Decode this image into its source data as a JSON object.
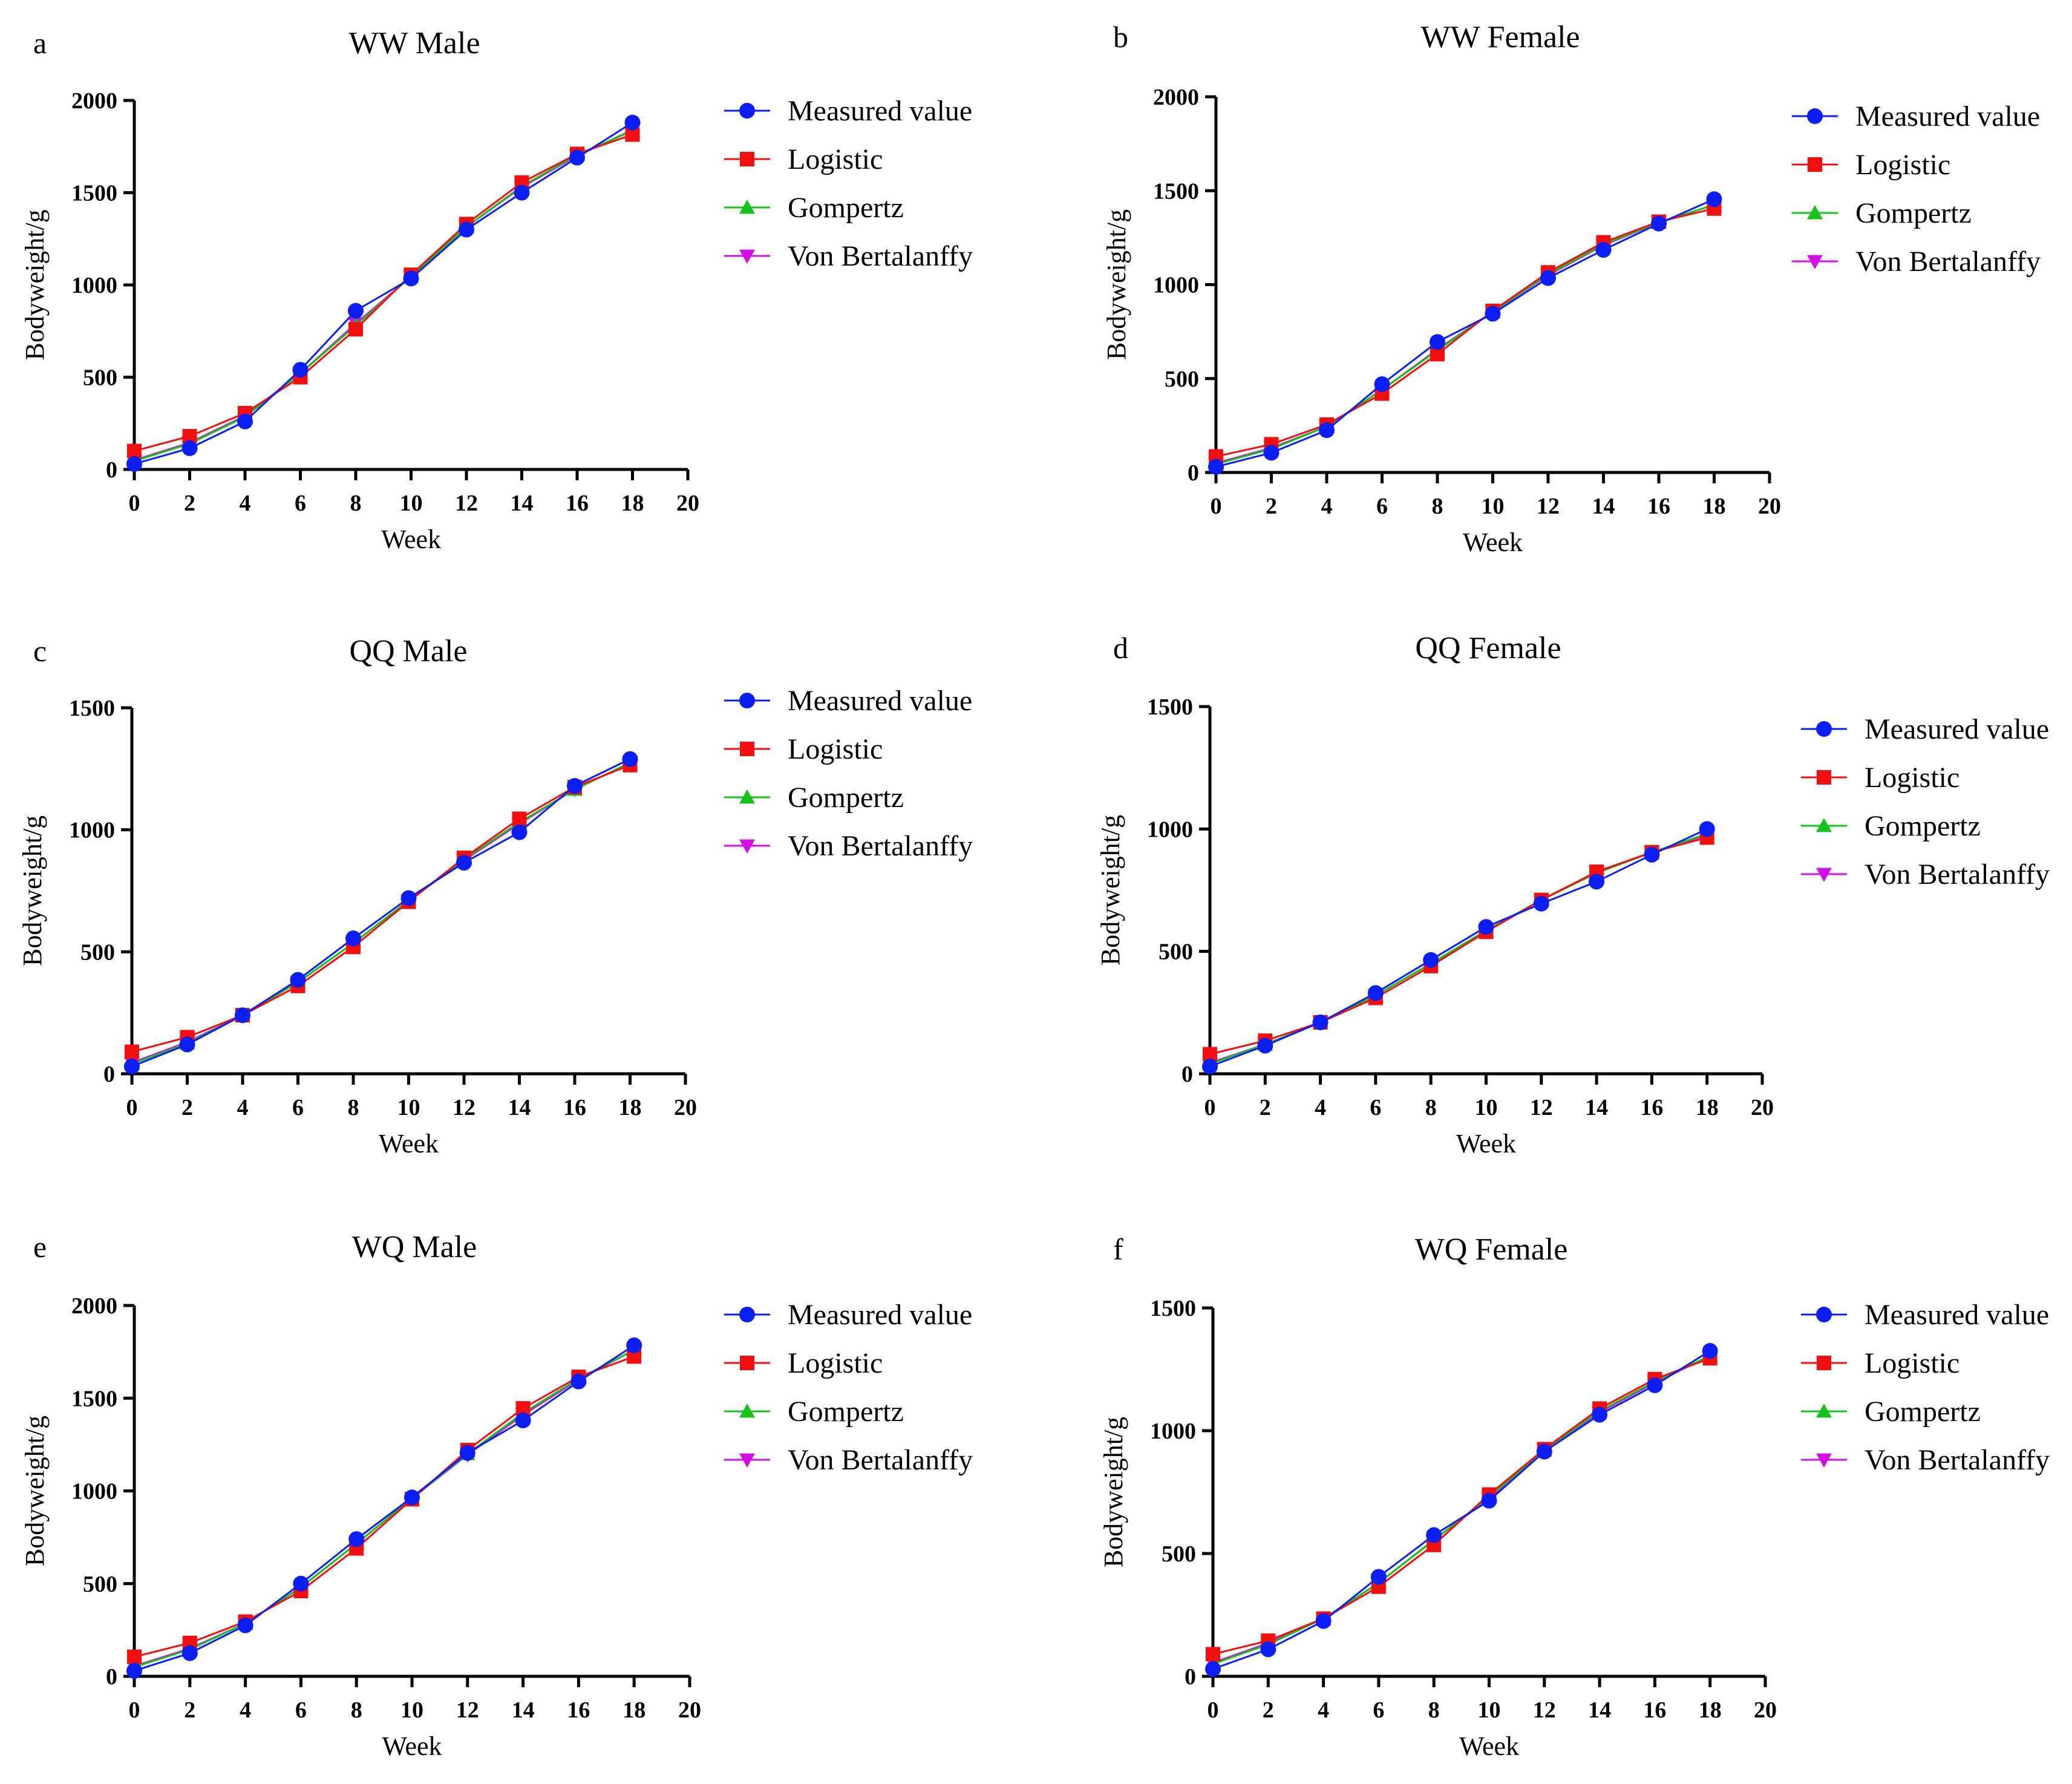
{
  "legend_labels": [
    "Measured value",
    "Logistic",
    "Gompertz",
    "Von Bertalanffy"
  ],
  "colors": {
    "Measured value": "#0b1ff5",
    "Logistic": "#f20f0f",
    "Gompertz": "#16c21b",
    "Von Bertalanffy": "#d10fe6"
  },
  "markers": {
    "Measured value": "circle",
    "Logistic": "square",
    "Gompertz": "triangle-up",
    "Von Bertalanffy": "triangle-down"
  },
  "chart_data": [
    {
      "letter": "a",
      "title": "WW Male",
      "type": "line",
      "xlabel": "Week",
      "ylabel": "Bodyweight/g",
      "xlim": [
        0,
        20
      ],
      "xticks": [
        0,
        2,
        4,
        6,
        8,
        10,
        12,
        14,
        16,
        18,
        20
      ],
      "ylim": [
        0,
        2000
      ],
      "yticks": [
        0,
        500,
        1000,
        1500,
        2000
      ],
      "x": [
        0,
        2,
        4,
        6,
        8,
        10,
        12,
        14,
        16,
        18
      ],
      "series": [
        {
          "name": "Von Bertalanffy",
          "values": [
            50,
            145,
            290,
            520,
            790,
            1045,
            1315,
            1530,
            1700,
            1840
          ]
        },
        {
          "name": "Gompertz",
          "values": [
            45,
            140,
            285,
            520,
            780,
            1045,
            1315,
            1535,
            1705,
            1835
          ]
        },
        {
          "name": "Logistic",
          "values": [
            100,
            180,
            305,
            500,
            760,
            1055,
            1330,
            1555,
            1710,
            1815
          ]
        },
        {
          "name": "Measured value",
          "values": [
            30,
            115,
            260,
            540,
            860,
            1035,
            1300,
            1500,
            1690,
            1880
          ]
        }
      ]
    },
    {
      "letter": "b",
      "title": "WW Female",
      "type": "line",
      "xlabel": "Week",
      "ylabel": "Bodyweight/g",
      "xlim": [
        0,
        20
      ],
      "xticks": [
        0,
        2,
        4,
        6,
        8,
        10,
        12,
        14,
        16,
        18,
        20
      ],
      "ylim": [
        0,
        2000
      ],
      "yticks": [
        0,
        500,
        1000,
        1500,
        2000
      ],
      "x": [
        0,
        2,
        4,
        6,
        8,
        10,
        12,
        14,
        16,
        18
      ],
      "series": [
        {
          "name": "Von Bertalanffy",
          "values": [
            50,
            130,
            245,
            440,
            655,
            855,
            1050,
            1210,
            1330,
            1425
          ]
        },
        {
          "name": "Gompertz",
          "values": [
            45,
            125,
            245,
            440,
            650,
            855,
            1055,
            1215,
            1330,
            1425
          ]
        },
        {
          "name": "Logistic",
          "values": [
            85,
            150,
            255,
            420,
            630,
            860,
            1065,
            1225,
            1335,
            1405
          ]
        },
        {
          "name": "Measured value",
          "values": [
            30,
            105,
            225,
            470,
            695,
            845,
            1035,
            1185,
            1325,
            1455
          ]
        }
      ]
    },
    {
      "letter": "c",
      "title": "QQ Male",
      "type": "line",
      "xlabel": "Week",
      "ylabel": "Bodyweight/g",
      "xlim": [
        0,
        20
      ],
      "xticks": [
        0,
        2,
        4,
        6,
        8,
        10,
        12,
        14,
        16,
        18,
        20
      ],
      "ylim": [
        0,
        1500
      ],
      "yticks": [
        0,
        500,
        1000,
        1500
      ],
      "x": [
        0,
        2,
        4,
        6,
        8,
        10,
        12,
        14,
        16,
        18
      ],
      "series": [
        {
          "name": "Von Bertalanffy",
          "values": [
            45,
            130,
            240,
            375,
            535,
            710,
            875,
            1025,
            1165,
            1275
          ]
        },
        {
          "name": "Gompertz",
          "values": [
            40,
            125,
            240,
            375,
            535,
            710,
            880,
            1030,
            1165,
            1275
          ]
        },
        {
          "name": "Logistic",
          "values": [
            90,
            150,
            240,
            360,
            520,
            705,
            885,
            1045,
            1175,
            1265
          ]
        },
        {
          "name": "Measured value",
          "values": [
            30,
            120,
            240,
            385,
            555,
            720,
            865,
            990,
            1180,
            1290
          ]
        }
      ]
    },
    {
      "letter": "d",
      "title": "QQ Female",
      "type": "line",
      "xlabel": "Week",
      "ylabel": "Bodyweight/g",
      "xlim": [
        0,
        20
      ],
      "xticks": [
        0,
        2,
        4,
        6,
        8,
        10,
        12,
        14,
        16,
        18,
        20
      ],
      "ylim": [
        0,
        1500
      ],
      "yticks": [
        0,
        500,
        1000,
        1500
      ],
      "x": [
        0,
        2,
        4,
        6,
        8,
        10,
        12,
        14,
        16,
        18
      ],
      "series": [
        {
          "name": "Von Bertalanffy",
          "values": [
            45,
            120,
            210,
            320,
            450,
            585,
            710,
            820,
            905,
            975
          ]
        },
        {
          "name": "Gompertz",
          "values": [
            40,
            120,
            210,
            320,
            450,
            585,
            710,
            820,
            905,
            980
          ]
        },
        {
          "name": "Logistic",
          "values": [
            80,
            135,
            210,
            310,
            440,
            580,
            710,
            825,
            905,
            965
          ]
        },
        {
          "name": "Measured value",
          "values": [
            30,
            115,
            210,
            330,
            465,
            600,
            695,
            785,
            895,
            1000
          ]
        }
      ]
    },
    {
      "letter": "e",
      "title": "WQ Male",
      "type": "line",
      "xlabel": "Week",
      "ylabel": "Bodyweight/g",
      "xlim": [
        0,
        20
      ],
      "xticks": [
        0,
        2,
        4,
        6,
        8,
        10,
        12,
        14,
        16,
        18,
        20
      ],
      "ylim": [
        0,
        2000
      ],
      "yticks": [
        0,
        500,
        1000,
        1500,
        2000
      ],
      "x": [
        0,
        2,
        4,
        6,
        8,
        10,
        12,
        14,
        16,
        18
      ],
      "series": [
        {
          "name": "Von Bertalanffy",
          "values": [
            55,
            150,
            285,
            480,
            715,
            960,
            1195,
            1410,
            1600,
            1760
          ]
        },
        {
          "name": "Gompertz",
          "values": [
            50,
            145,
            285,
            480,
            715,
            960,
            1200,
            1420,
            1605,
            1760
          ]
        },
        {
          "name": "Logistic",
          "values": [
            105,
            180,
            295,
            460,
            690,
            955,
            1220,
            1445,
            1615,
            1725
          ]
        },
        {
          "name": "Measured value",
          "values": [
            30,
            125,
            275,
            500,
            740,
            965,
            1205,
            1380,
            1590,
            1785
          ]
        }
      ]
    },
    {
      "letter": "f",
      "title": "WQ Female",
      "type": "line",
      "xlabel": "Week",
      "ylabel": "Bodyweight/g",
      "xlim": [
        0,
        20
      ],
      "xticks": [
        0,
        2,
        4,
        6,
        8,
        10,
        12,
        14,
        16,
        18,
        20
      ],
      "ylim": [
        0,
        1500
      ],
      "yticks": [
        0,
        500,
        1000,
        1500
      ],
      "x": [
        0,
        2,
        4,
        6,
        8,
        10,
        12,
        14,
        16,
        18
      ],
      "series": [
        {
          "name": "Von Bertalanffy",
          "values": [
            55,
            135,
            235,
            380,
            555,
            725,
            920,
            1075,
            1195,
            1305
          ]
        },
        {
          "name": "Gompertz",
          "values": [
            50,
            130,
            235,
            380,
            555,
            730,
            920,
            1080,
            1200,
            1305
          ]
        },
        {
          "name": "Logistic",
          "values": [
            90,
            145,
            235,
            365,
            535,
            740,
            925,
            1090,
            1210,
            1295
          ]
        },
        {
          "name": "Measured value",
          "values": [
            30,
            110,
            225,
            405,
            575,
            715,
            915,
            1065,
            1185,
            1325
          ]
        }
      ]
    }
  ]
}
